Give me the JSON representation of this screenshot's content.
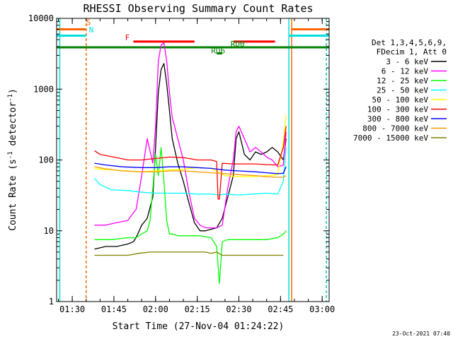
{
  "chart_data": {
    "type": "line",
    "title": "RHESSI Observing Summary Count Rates",
    "xlabel": "Start Time (27-Nov-04 01:24:22)",
    "ylabel": "Count Rate (s",
    "ylabel_sup": "-1",
    "ylabel_tail": " detector",
    "ylabel_sup2": "-1",
    "ylabel_end": ")",
    "y_scale": "log",
    "ylim": [
      1,
      10000
    ],
    "y_ticks": [
      1,
      10,
      100,
      1000,
      10000
    ],
    "y_tick_labels": [
      "1",
      "10",
      "100",
      "1000",
      "10000"
    ],
    "xlim": [
      "01:24:22",
      "03:02:30"
    ],
    "x_ticks": [
      "01:30",
      "01:45",
      "02:00",
      "02:15",
      "02:30",
      "02:45",
      "03:00"
    ],
    "footer_date": "23-Oct-2021 07:40",
    "legend_header": [
      "Det 1,3,4,5,6,9,",
      "FDecim 1, Att 0"
    ],
    "series": [
      {
        "name": "3 - 6 keV",
        "color": "#000000",
        "x": [
          "01:38",
          "01:42",
          "01:46",
          "01:50",
          "01:52",
          "01:53",
          "01:55",
          "01:57",
          "01:59",
          "02:00",
          "02:01",
          "02:02",
          "02:03",
          "02:04",
          "02:05",
          "02:06",
          "02:08",
          "02:10",
          "02:12",
          "02:14",
          "02:16",
          "02:18",
          "02:22",
          "02:24",
          "02:26",
          "02:28",
          "02:29",
          "02:30",
          "02:32",
          "02:34",
          "02:36",
          "02:38",
          "02:40",
          "02:42",
          "02:44",
          "02:46",
          "02:47"
        ],
        "y": [
          5.5,
          6,
          6,
          6.5,
          7,
          8,
          12,
          15,
          30,
          150,
          900,
          1900,
          2300,
          1200,
          500,
          200,
          90,
          50,
          25,
          13,
          10,
          10,
          11,
          15,
          30,
          60,
          200,
          250,
          120,
          100,
          130,
          120,
          130,
          150,
          130,
          100,
          200
        ]
      },
      {
        "name": "6 - 12 keV",
        "color": "#ff00ff",
        "x": [
          "01:38",
          "01:42",
          "01:46",
          "01:50",
          "01:52",
          "01:53",
          "01:55",
          "01:57",
          "01:59",
          "02:00",
          "02:01",
          "02:02",
          "02:03",
          "02:04",
          "02:05",
          "02:06",
          "02:08",
          "02:10",
          "02:12",
          "02:14",
          "02:16",
          "02:18",
          "02:22",
          "02:24",
          "02:26",
          "02:28",
          "02:29",
          "02:30",
          "02:32",
          "02:34",
          "02:36",
          "02:38",
          "02:40",
          "02:42",
          "02:44",
          "02:46",
          "02:47"
        ],
        "y": [
          12,
          12,
          13,
          14,
          18,
          20,
          60,
          200,
          90,
          300,
          2500,
          4200,
          4500,
          2500,
          900,
          400,
          200,
          100,
          35,
          15,
          12,
          11,
          11,
          12,
          40,
          100,
          250,
          300,
          200,
          130,
          150,
          130,
          110,
          100,
          80,
          85,
          250
        ]
      },
      {
        "name": "12 - 25 keV",
        "color": "#00ff00",
        "x": [
          "01:38",
          "01:44",
          "01:50",
          "01:53",
          "01:55",
          "01:57",
          "01:58",
          "01:59",
          "02:00",
          "02:01",
          "02:02",
          "02:03",
          "02:04",
          "02:05",
          "02:06",
          "02:08",
          "02:12",
          "02:16",
          "02:20",
          "02:22",
          "02:23",
          "02:24",
          "02:26",
          "02:30",
          "02:36",
          "02:40",
          "02:44",
          "02:46",
          "02:47"
        ],
        "y": [
          7.5,
          7.5,
          8,
          8,
          9,
          10,
          14,
          40,
          120,
          60,
          150,
          50,
          14,
          9,
          9,
          8.5,
          8.5,
          8.5,
          8,
          6,
          1.8,
          7,
          7.5,
          7.5,
          7.5,
          7.5,
          8,
          9,
          10
        ]
      },
      {
        "name": "25 - 50 keV",
        "color": "#00ffff",
        "x": [
          "01:38",
          "01:40",
          "01:44",
          "01:50",
          "01:55",
          "02:00",
          "02:05",
          "02:10",
          "02:15",
          "02:20",
          "02:23",
          "02:25",
          "02:30",
          "02:35",
          "02:40",
          "02:44",
          "02:46",
          "02:47"
        ],
        "y": [
          55,
          45,
          38,
          37,
          35,
          34,
          34,
          34,
          33,
          33,
          32,
          33,
          32,
          33,
          34,
          33,
          50,
          150
        ]
      },
      {
        "name": "50 - 100 keV",
        "color": "#ffff00",
        "x": [
          "01:38",
          "01:45",
          "01:55",
          "02:00",
          "02:05",
          "02:10",
          "02:15",
          "02:20",
          "02:25",
          "02:30",
          "02:35",
          "02:40",
          "02:44",
          "02:46",
          "02:47"
        ],
        "y": [
          75,
          72,
          68,
          70,
          72,
          74,
          78,
          76,
          60,
          58,
          58,
          60,
          62,
          180,
          430
        ]
      },
      {
        "name": "100 - 300 keV",
        "color": "#ff0000",
        "x": [
          "01:38",
          "01:40",
          "01:45",
          "01:50",
          "01:55",
          "02:00",
          "02:05",
          "02:10",
          "02:15",
          "02:20",
          "02:22",
          "02:22.5",
          "02:23",
          "02:24",
          "02:28",
          "02:32",
          "02:36",
          "02:40",
          "02:44",
          "02:46",
          "02:47"
        ],
        "y": [
          135,
          120,
          110,
          100,
          100,
          105,
          110,
          108,
          100,
          100,
          95,
          28,
          28,
          90,
          88,
          88,
          88,
          86,
          85,
          150,
          300
        ]
      },
      {
        "name": "300 - 800 keV",
        "color": "#0000ff",
        "x": [
          "01:38",
          "01:42",
          "01:48",
          "01:55",
          "02:00",
          "02:05",
          "02:10",
          "02:15",
          "02:20",
          "02:25",
          "02:30",
          "02:36",
          "02:40",
          "02:44",
          "02:46",
          "02:47"
        ],
        "y": [
          90,
          85,
          80,
          78,
          78,
          80,
          80,
          78,
          76,
          72,
          70,
          68,
          66,
          64,
          65,
          80
        ]
      },
      {
        "name": "800 - 7000 keV",
        "color": "#ff9900",
        "x": [
          "01:38",
          "01:42",
          "01:48",
          "01:55",
          "02:00",
          "02:05",
          "02:10",
          "02:15",
          "02:20",
          "02:25",
          "02:30",
          "02:36",
          "02:40",
          "02:44",
          "02:46",
          "02:47"
        ],
        "y": [
          80,
          75,
          70,
          68,
          68,
          70,
          70,
          68,
          66,
          64,
          62,
          60,
          58,
          57,
          57,
          60
        ]
      },
      {
        "name": "7000 - 15000 keV",
        "color": "#808000",
        "x": [
          "01:38",
          "01:42",
          "01:46",
          "01:50",
          "01:54",
          "01:58",
          "02:02",
          "02:06",
          "02:10",
          "02:14",
          "02:18",
          "02:20",
          "02:22",
          "02:24",
          "02:28",
          "02:32",
          "02:36",
          "02:40",
          "02:44",
          "02:46"
        ],
        "y": [
          4.5,
          4.5,
          4.5,
          4.5,
          4.8,
          5,
          5,
          5,
          5,
          5,
          5,
          4.8,
          5,
          4.5,
          4.5,
          4.5,
          4.5,
          4.5,
          4.5,
          4.5
        ]
      }
    ],
    "annotations": [
      {
        "text": "S",
        "color": "#ff6600",
        "x": "01:35",
        "y": 8000
      },
      {
        "text": "N",
        "color": "#00e0e0",
        "x": "01:36",
        "y": 6300
      },
      {
        "text": "F",
        "color": "#ff0000",
        "x": "01:49",
        "y": 4900
      },
      {
        "text": "RD0",
        "color": "#008000",
        "x": "02:27",
        "y": 4000
      },
      {
        "text": "RD6",
        "color": "#008000",
        "x": "02:20",
        "y": 3200
      }
    ],
    "bars": [
      {
        "label": "S",
        "color": "#ff6600",
        "from": "01:24:22",
        "to": "01:35",
        "y": 7000
      },
      {
        "label": "S",
        "color": "#ff6600",
        "from": "02:49",
        "to": "03:02:30",
        "y": 7000
      },
      {
        "label": "N",
        "color": "#00e0e0",
        "from": "01:24:22",
        "to": "01:35",
        "y": 5700
      },
      {
        "label": "N",
        "color": "#00e0e0",
        "from": "02:48",
        "to": "03:02:30",
        "y": 5700
      },
      {
        "label": "F",
        "color": "#ff0000",
        "from": "01:52",
        "to": "02:14",
        "y": 4700
      },
      {
        "label": "F",
        "color": "#ff0000",
        "from": "02:28",
        "to": "02:43",
        "y": 4700
      },
      {
        "label": "RD0",
        "color": "#008000",
        "from": "01:24:22",
        "to": "03:02:30",
        "y": 3900
      },
      {
        "label": "RD6",
        "color": "#008000",
        "from": "02:22",
        "to": "02:24",
        "y": 3200
      }
    ],
    "vlines": [
      {
        "color": "#00e0e0",
        "x": "01:25:30"
      },
      {
        "color": "#00e0e0",
        "x": "01:35",
        "dashed": true
      },
      {
        "color": "#ff6600",
        "x": "01:35",
        "dashed": true
      },
      {
        "color": "#00e0e0",
        "x": "02:48"
      },
      {
        "color": "#ff6600",
        "x": "02:49"
      },
      {
        "color": "#ff6600",
        "x": "03:01:30",
        "dashed": true
      },
      {
        "color": "#00e0e0",
        "x": "03:01:30",
        "dashed": true
      }
    ]
  }
}
